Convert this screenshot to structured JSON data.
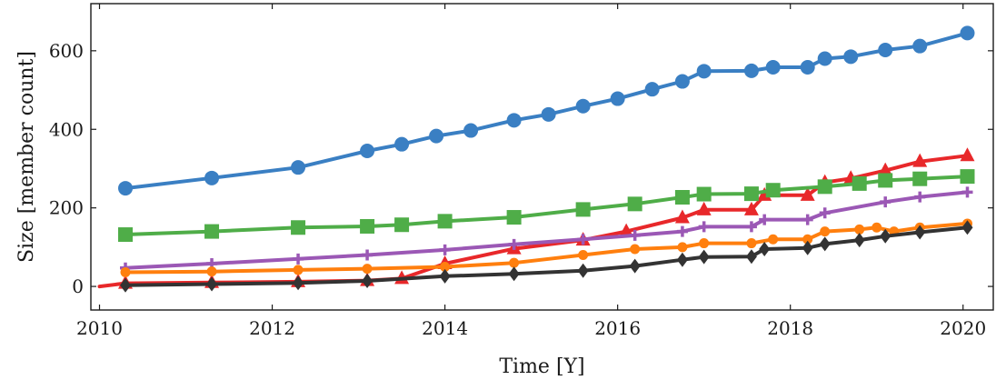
{
  "chart_data": {
    "type": "line",
    "title": "",
    "xlabel": "Time [Y]",
    "ylabel": "Size [member count]",
    "xlim": [
      2009.9,
      2020.35
    ],
    "ylim": [
      -60,
      720
    ],
    "xticks": [
      2010,
      2012,
      2014,
      2016,
      2018,
      2020
    ],
    "yticks": [
      0,
      200,
      400,
      600
    ],
    "grid": false,
    "legend": "none",
    "series": [
      {
        "color": "#3a7fc3",
        "marker": "circle",
        "x": [
          2010.3,
          2011.3,
          2012.3,
          2013.1,
          2013.5,
          2013.9,
          2014.3,
          2014.8,
          2015.2,
          2015.6,
          2016.0,
          2016.4,
          2016.75,
          2017.0,
          2017.55,
          2017.8,
          2018.2,
          2018.4,
          2018.7,
          2019.1,
          2019.5,
          2020.05
        ],
        "y": [
          250,
          276,
          303,
          345,
          362,
          383,
          397,
          423,
          438,
          459,
          478,
          502,
          522,
          548,
          549,
          558,
          558,
          580,
          585,
          602,
          612,
          645
        ]
      },
      {
        "color": "#e8282a",
        "marker": "triangle",
        "x": [
          2010.0,
          2010.3,
          2011.3,
          2012.3,
          2013.1,
          2013.5,
          2014.0,
          2014.8,
          2015.6,
          2016.1,
          2016.75,
          2017.0,
          2017.55,
          2017.7,
          2018.2,
          2018.4,
          2018.7,
          2019.1,
          2019.5,
          2020.05
        ],
        "y": [
          0,
          8,
          10,
          12,
          15,
          20,
          58,
          96,
          118,
          140,
          175,
          195,
          195,
          232,
          232,
          265,
          275,
          295,
          318,
          333
        ]
      },
      {
        "color": "#4fad48",
        "marker": "square",
        "x": [
          2010.3,
          2011.3,
          2012.3,
          2013.1,
          2013.5,
          2014.0,
          2014.8,
          2015.6,
          2016.2,
          2016.75,
          2017.0,
          2017.55,
          2017.8,
          2018.4,
          2018.8,
          2019.1,
          2019.5,
          2020.05
        ],
        "y": [
          132,
          140,
          150,
          153,
          157,
          166,
          176,
          196,
          210,
          227,
          235,
          236,
          245,
          254,
          262,
          270,
          274,
          280
        ]
      },
      {
        "color": "#9b58b5",
        "marker": "plus",
        "x": [
          2010.3,
          2011.3,
          2012.3,
          2013.1,
          2014.0,
          2014.8,
          2015.6,
          2016.2,
          2016.75,
          2017.0,
          2017.55,
          2017.7,
          2018.2,
          2018.4,
          2019.1,
          2019.5,
          2020.05
        ],
        "y": [
          47,
          58,
          70,
          80,
          93,
          107,
          120,
          130,
          140,
          152,
          152,
          170,
          170,
          187,
          215,
          228,
          240
        ]
      },
      {
        "color": "#ff7f0e",
        "marker": "circle-small",
        "x": [
          2010.3,
          2011.3,
          2012.3,
          2013.1,
          2014.0,
          2014.8,
          2015.6,
          2016.2,
          2016.75,
          2017.0,
          2017.55,
          2017.8,
          2018.2,
          2018.4,
          2018.8,
          2019.0,
          2019.2,
          2019.5,
          2020.05
        ],
        "y": [
          36,
          38,
          42,
          45,
          50,
          60,
          80,
          95,
          100,
          110,
          110,
          120,
          120,
          140,
          145,
          150,
          140,
          150,
          160
        ]
      },
      {
        "color": "#333333",
        "marker": "diamond",
        "x": [
          2010.3,
          2011.3,
          2012.3,
          2013.1,
          2014.0,
          2014.8,
          2015.6,
          2016.2,
          2016.75,
          2017.0,
          2017.55,
          2017.7,
          2018.2,
          2018.4,
          2018.8,
          2019.1,
          2019.5,
          2020.05
        ],
        "y": [
          3,
          6,
          9,
          14,
          26,
          32,
          40,
          52,
          68,
          75,
          76,
          95,
          98,
          108,
          118,
          128,
          138,
          150
        ]
      }
    ]
  }
}
